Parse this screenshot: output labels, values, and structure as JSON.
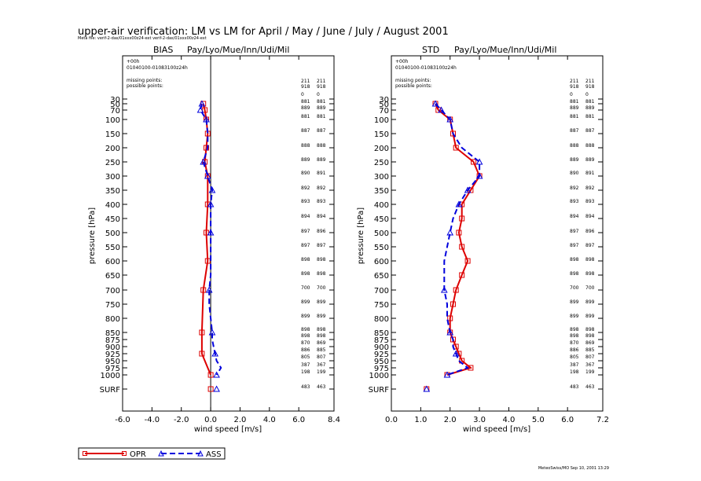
{
  "title": "upper-air verification: LM vs LM for April / May / June / July / August 2001",
  "file_line": "Meta file: verif-2-das/01xxx00z24-ext verif-2-das/01xxx00z24-ext",
  "footer_stamp": "MeteoSwiss/MO Sep 10, 2001 13:29",
  "legend": {
    "opr": {
      "label": "OPR",
      "color": "#dd0000"
    },
    "ass": {
      "label": "ASS",
      "color": "#0000dd"
    }
  },
  "pressure_levels": [
    "30",
    "50",
    "70",
    "100",
    "150",
    "200",
    "250",
    "300",
    "350",
    "400",
    "450",
    "500",
    "550",
    "600",
    "650",
    "700",
    "750",
    "800",
    "850",
    "875",
    "900",
    "925",
    "950",
    "975",
    "1000",
    "SURF"
  ],
  "count_labels": {
    "left": [
      "211",
      "918",
      "0",
      "881",
      "889",
      "881",
      "887",
      "888",
      "889",
      "890",
      "892",
      "893",
      "894",
      "897",
      "897",
      "898",
      "898",
      "700",
      "899",
      "899",
      "898",
      "898",
      "870",
      "886",
      "805",
      "387",
      "198",
      "483"
    ],
    "right": [
      "211",
      "918",
      "0",
      "881",
      "889",
      "881",
      "887",
      "888",
      "889",
      "891",
      "892",
      "893",
      "894",
      "896",
      "897",
      "898",
      "898",
      "700",
      "899",
      "899",
      "898",
      "898",
      "869",
      "885",
      "807",
      "367",
      "199",
      "463"
    ]
  },
  "chart_data": [
    {
      "type": "line",
      "panel": "BIAS",
      "title": "BIAS",
      "region": "Pay/Lyo/Mue/Inn/Udi/Mil",
      "forecast": "+00h",
      "period": "01040100-01083100z24h",
      "info_labels": [
        "missing points:",
        "possible points:"
      ],
      "xlabel": "wind speed  [m/s]",
      "ylabel": "pressure [hPa]",
      "xlim": [
        -6.0,
        8.4
      ],
      "xticks": [
        "-6.0",
        "-4.0",
        "-2.0",
        "0.0",
        "2.0",
        "4.0",
        "6.0",
        "8.4"
      ],
      "y_categories": [
        "30",
        "50",
        "70",
        "100",
        "150",
        "200",
        "250",
        "300",
        "350",
        "400",
        "450",
        "500",
        "550",
        "600",
        "650",
        "700",
        "750",
        "800",
        "850",
        "875",
        "900",
        "925",
        "950",
        "975",
        "1000",
        "SURF"
      ],
      "series": [
        {
          "name": "OPR",
          "levels": [
            "50",
            "70",
            "100",
            "150",
            "200",
            "250",
            "300",
            "400",
            "500",
            "600",
            "700",
            "850",
            "925",
            "1000",
            "SURF"
          ],
          "values": [
            -0.5,
            -0.4,
            -0.3,
            -0.2,
            -0.3,
            -0.4,
            -0.2,
            -0.2,
            -0.3,
            -0.2,
            -0.5,
            -0.6,
            -0.6,
            0.0,
            0.0
          ]
        },
        {
          "name": "ASS",
          "levels": [
            "50",
            "70",
            "100",
            "150",
            "200",
            "250",
            "300",
            "350",
            "400",
            "450",
            "500",
            "550",
            "600",
            "650",
            "700",
            "750",
            "800",
            "850",
            "875",
            "900",
            "925",
            "950",
            "975",
            "1000",
            "SURF"
          ],
          "values": [
            -0.6,
            -0.7,
            -0.3,
            -0.2,
            -0.2,
            -0.5,
            -0.2,
            0.1,
            0.0,
            0.0,
            0.0,
            0.0,
            0.0,
            0.0,
            -0.1,
            -0.1,
            0.0,
            0.1,
            0.1,
            0.2,
            0.3,
            0.4,
            0.7,
            0.4,
            0.4
          ]
        }
      ]
    },
    {
      "type": "line",
      "panel": "STD",
      "title": "STD",
      "region": "Pay/Lyo/Mue/Inn/Udi/Mil",
      "forecast": "+00h",
      "period": "01040100-01083100z24h",
      "info_labels": [
        "missing points:",
        "possible points:"
      ],
      "xlabel": "wind speed  [m/s]",
      "ylabel": "pressure [hPa]",
      "xlim": [
        0.0,
        7.2
      ],
      "xticks": [
        "0.0",
        "1.0",
        "2.0",
        "3.0",
        "4.0",
        "5.0",
        "6.0",
        "7.2"
      ],
      "y_categories": [
        "30",
        "50",
        "70",
        "100",
        "150",
        "200",
        "250",
        "300",
        "350",
        "400",
        "450",
        "500",
        "550",
        "600",
        "650",
        "700",
        "750",
        "800",
        "850",
        "875",
        "900",
        "925",
        "950",
        "975",
        "1000",
        "SURF"
      ],
      "series": [
        {
          "name": "OPR",
          "levels": [
            "50",
            "70",
            "100",
            "150",
            "200",
            "250",
            "300",
            "350",
            "400",
            "450",
            "500",
            "550",
            "600",
            "650",
            "700",
            "750",
            "800",
            "850",
            "875",
            "900",
            "925",
            "950",
            "975",
            "1000",
            "SURF"
          ],
          "values": [
            1.5,
            1.6,
            2.0,
            2.1,
            2.2,
            2.8,
            3.0,
            2.7,
            2.4,
            2.4,
            2.3,
            2.4,
            2.6,
            2.4,
            2.2,
            2.1,
            2.0,
            2.0,
            2.1,
            2.2,
            2.3,
            2.4,
            2.7,
            1.9,
            1.2
          ]
        },
        {
          "name": "ASS",
          "levels": [
            "50",
            "70",
            "100",
            "150",
            "200",
            "250",
            "300",
            "350",
            "400",
            "450",
            "500",
            "550",
            "600",
            "650",
            "700",
            "750",
            "800",
            "850",
            "875",
            "900",
            "925",
            "950",
            "975",
            "1000",
            "SURF"
          ],
          "values": [
            1.5,
            1.7,
            2.0,
            2.1,
            2.4,
            3.0,
            3.0,
            2.6,
            2.3,
            2.1,
            2.0,
            1.9,
            1.8,
            1.8,
            1.8,
            1.9,
            1.9,
            2.0,
            2.1,
            2.1,
            2.2,
            2.3,
            2.6,
            1.9,
            1.2
          ]
        }
      ]
    }
  ]
}
